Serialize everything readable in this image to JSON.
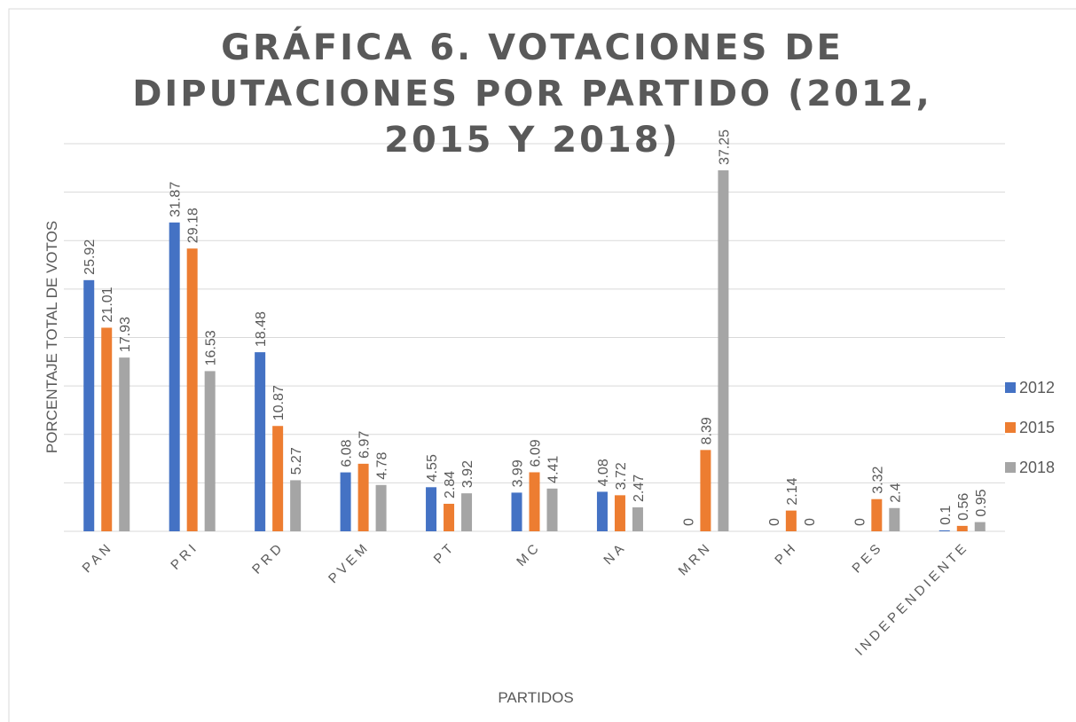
{
  "chart_data": {
    "type": "bar",
    "title": "GRÁFICA 6. VOTACIONES DE DIPUTACIONES POR PARTIDO (2012, 2015 Y 2018)",
    "x_label": "PARTIDOS",
    "y_label": "PORCENTAJE TOTAL DE VOTOS",
    "categories": [
      "PAN",
      "PRI",
      "PRD",
      "PVEM",
      "PT",
      "MC",
      "NA",
      "MRN",
      "PH",
      "PES",
      "INDEPENDIENTE"
    ],
    "series": [
      {
        "name": "2012",
        "color": "#4472c4",
        "values": [
          25.92,
          31.87,
          18.48,
          6.08,
          4.55,
          3.99,
          4.08,
          0,
          0,
          0,
          0.1
        ]
      },
      {
        "name": "2015",
        "color": "#ed7d31",
        "values": [
          21.01,
          29.18,
          10.87,
          6.97,
          2.84,
          6.09,
          3.72,
          8.39,
          2.14,
          3.32,
          0.56
        ]
      },
      {
        "name": "2018",
        "color": "#a5a5a5",
        "values": [
          17.93,
          16.53,
          5.27,
          4.78,
          3.92,
          4.41,
          2.47,
          37.25,
          0,
          2.4,
          0.95
        ]
      }
    ],
    "ylim": [
      0,
      40
    ],
    "yticks": [
      0,
      5,
      10,
      15,
      20,
      25,
      30,
      35,
      40
    ],
    "grid": true,
    "legend": "right"
  }
}
